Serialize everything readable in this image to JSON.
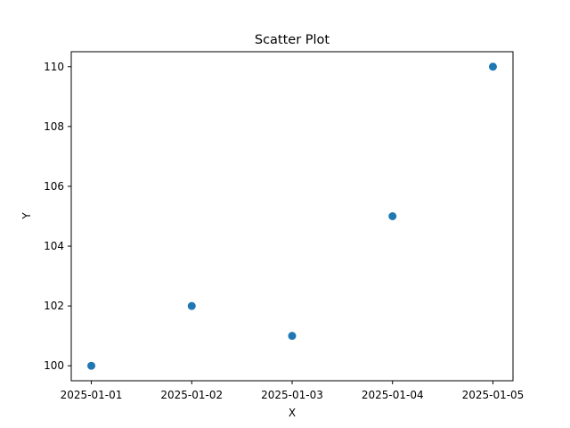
{
  "chart_data": {
    "type": "scatter",
    "title": "Scatter Plot",
    "xlabel": "X",
    "ylabel": "Y",
    "x": [
      "2025-01-01",
      "2025-01-02",
      "2025-01-03",
      "2025-01-04",
      "2025-01-05"
    ],
    "y": [
      100,
      102,
      101,
      105,
      110
    ],
    "xticks": [
      "2025-01-01",
      "2025-01-02",
      "2025-01-03",
      "2025-01-04",
      "2025-01-05"
    ],
    "yticks": [
      "100",
      "102",
      "104",
      "106",
      "108",
      "110"
    ],
    "xlim": [
      "2025-01-01",
      "2025-01-05"
    ],
    "ylim": [
      99.5,
      110.5
    ],
    "grid": false,
    "legend": false,
    "marker_color": "#1f77b4"
  }
}
